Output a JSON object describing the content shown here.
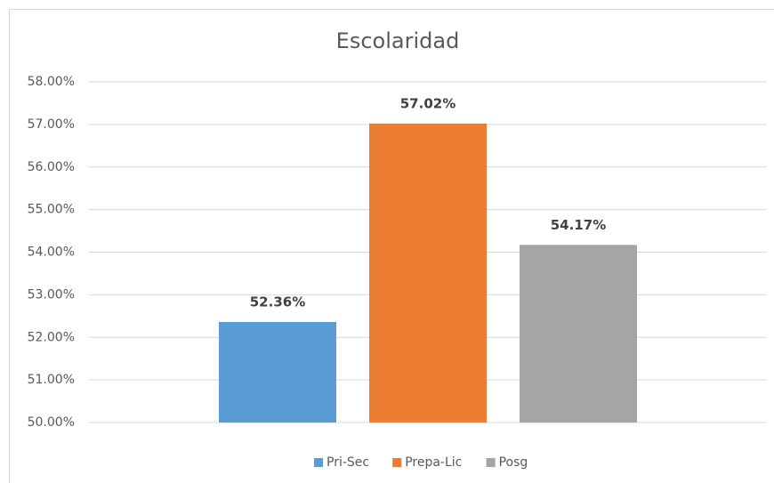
{
  "chart_data": {
    "type": "bar",
    "title": "Escolaridad",
    "series": [
      {
        "name": "Pri-Sec",
        "color": "#5b9bd5",
        "values": [
          52.36
        ],
        "value_labels": [
          "52.36%"
        ]
      },
      {
        "name": "Prepa-Lic",
        "color": "#ed7d31",
        "values": [
          57.02
        ],
        "value_labels": [
          "57.02%"
        ]
      },
      {
        "name": "Posg",
        "color": "#a5a5a5",
        "values": [
          54.17
        ],
        "value_labels": [
          "54.17%"
        ]
      }
    ],
    "ylim": [
      50,
      58
    ],
    "yticks": [
      {
        "value": 50,
        "label": "50.00%"
      },
      {
        "value": 51,
        "label": "51.00%"
      },
      {
        "value": 52,
        "label": "52.00%"
      },
      {
        "value": 53,
        "label": "53.00%"
      },
      {
        "value": 54,
        "label": "54.00%"
      },
      {
        "value": 55,
        "label": "55.00%"
      },
      {
        "value": 56,
        "label": "56.00%"
      },
      {
        "value": 57,
        "label": "57.00%"
      },
      {
        "value": 58,
        "label": "58.00%"
      }
    ],
    "grid": true,
    "legend": "bottom"
  }
}
